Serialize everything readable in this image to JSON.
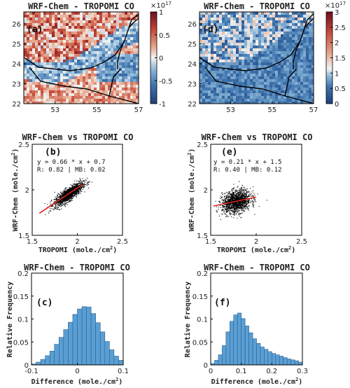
{
  "colors": {
    "diverging": [
      "#1f3f7a",
      "#3d73ad",
      "#8fb9d9",
      "#f2f2f2",
      "#e6a58a",
      "#c54a3a",
      "#6f0f1f"
    ],
    "scatter": "#000000",
    "fit_line": "#e0231e",
    "histogram_fill": "#5a9fd4",
    "histogram_edge": "#2a5f8f",
    "border_lines": "#000000"
  },
  "chart_data": [
    {
      "type": "heatmap",
      "panel": "(a)",
      "title": "WRF-Chem - TROPOMI CO",
      "xticks": [
        "53",
        "55",
        "57"
      ],
      "yticks": [
        "26",
        "25",
        "24",
        "23",
        "22"
      ],
      "xlim": [
        51.5,
        57
      ],
      "ylim": [
        22,
        26.6
      ],
      "colorbar": {
        "multiplier_base": "×10",
        "multiplier_exp": "17",
        "ticks": [
          "1",
          "0.5",
          "0",
          "-0.5",
          "-1"
        ],
        "range": [
          -1,
          1
        ]
      }
    },
    {
      "type": "heatmap",
      "panel": "(d)",
      "title": "WRF-Chem - TROPOMI CO",
      "xticks": [
        "53",
        "55",
        "57"
      ],
      "yticks": [
        "26",
        "25",
        "24",
        "23",
        "22"
      ],
      "xlim": [
        51.5,
        57
      ],
      "ylim": [
        22,
        26.6
      ],
      "colorbar": {
        "multiplier_base": "×10",
        "multiplier_exp": "17",
        "ticks": [
          "3",
          "2.5",
          "2",
          "1.5",
          "1",
          "0.5",
          "0"
        ],
        "range": [
          0,
          3
        ]
      }
    },
    {
      "type": "scatter",
      "panel": "(b)",
      "title": "WRF-Chem vs TROPOMI CO",
      "xlabel": "TROPOMI (mole./cm",
      "ylabel": "WRF-Chem (mole./cm",
      "unit_exp": "2",
      "unit_close": ")",
      "xlim": [
        1.5,
        2.5
      ],
      "ylim": [
        1.5,
        2.5
      ],
      "xticks": [
        "1.5",
        "2",
        "2.5"
      ],
      "yticks": [
        "2.5",
        "2",
        "1.5"
      ],
      "equation": "y = 0.66 * x + 0.7",
      "stats": "R: 0.82 | MB: 0.02",
      "fit": {
        "slope": 0.66,
        "intercept": 0.7,
        "x_range": [
          1.58,
          2.06
        ]
      },
      "cluster": {
        "x_center": 1.9,
        "x_spread": 0.13,
        "y_spread": 0.035
      }
    },
    {
      "type": "scatter",
      "panel": "(e)",
      "title": "WRF-Chem vs TROPOMI CO",
      "xlabel": "TROPOMI (mole./cm",
      "ylabel": "WRF-Chem (mole./cm",
      "unit_exp": "2",
      "unit_close": ")",
      "xlim": [
        1.5,
        2.5
      ],
      "ylim": [
        1.5,
        2.5
      ],
      "xticks": [
        "1.5",
        "2",
        "2.5"
      ],
      "yticks": [
        "2.5",
        "2",
        "1.5"
      ],
      "equation": "y = 0.21 * x + 1.5",
      "stats": "R: 0.40 | MB: 0.12",
      "fit": {
        "slope": 0.21,
        "intercept": 1.5,
        "x_range": [
          1.53,
          2.0
        ]
      },
      "cluster": {
        "x_center": 1.78,
        "x_spread": 0.13,
        "y_spread": 0.06
      }
    },
    {
      "type": "bar",
      "panel": "(c)",
      "title": "WRF-Chem - TROPOMI CO",
      "xlabel": "Difference (mole./cm",
      "ylabel": "Relative Frequency",
      "unit_exp": "2",
      "unit_close": ")",
      "xlim": [
        -0.1,
        0.1
      ],
      "ylim": [
        0,
        0.2
      ],
      "xticks": [
        "-0.1",
        "0",
        "0.1"
      ],
      "yticks": [
        "0.2",
        "0.15",
        "0.1",
        "0.05",
        "0"
      ],
      "bin_start": -0.1,
      "bin_width": 0.01,
      "values": [
        0.002,
        0.006,
        0.012,
        0.02,
        0.03,
        0.045,
        0.06,
        0.077,
        0.093,
        0.11,
        0.122,
        0.127,
        0.126,
        0.112,
        0.092,
        0.072,
        0.051,
        0.033,
        0.019,
        0.01
      ]
    },
    {
      "type": "bar",
      "panel": "(f)",
      "title": "WRF-Chem - TROPOMI CO",
      "xlabel": "Difference (mole./cm",
      "ylabel": "Relative Frequency",
      "unit_exp": "2",
      "unit_close": ")",
      "xlim": [
        0,
        0.3
      ],
      "ylim": [
        0,
        0.2
      ],
      "xticks": [
        "0",
        "0.1",
        "0.2",
        "0.3"
      ],
      "yticks": [
        "0.2",
        "0.15",
        "0.1",
        "0.05",
        "0"
      ],
      "bin_start": 0.0,
      "bin_width": 0.0125,
      "values": [
        0.003,
        0.01,
        0.022,
        0.042,
        0.072,
        0.095,
        0.109,
        0.113,
        0.101,
        0.085,
        0.07,
        0.057,
        0.047,
        0.039,
        0.034,
        0.029,
        0.025,
        0.022,
        0.019,
        0.016,
        0.013,
        0.011,
        0.009,
        0.006
      ]
    }
  ]
}
